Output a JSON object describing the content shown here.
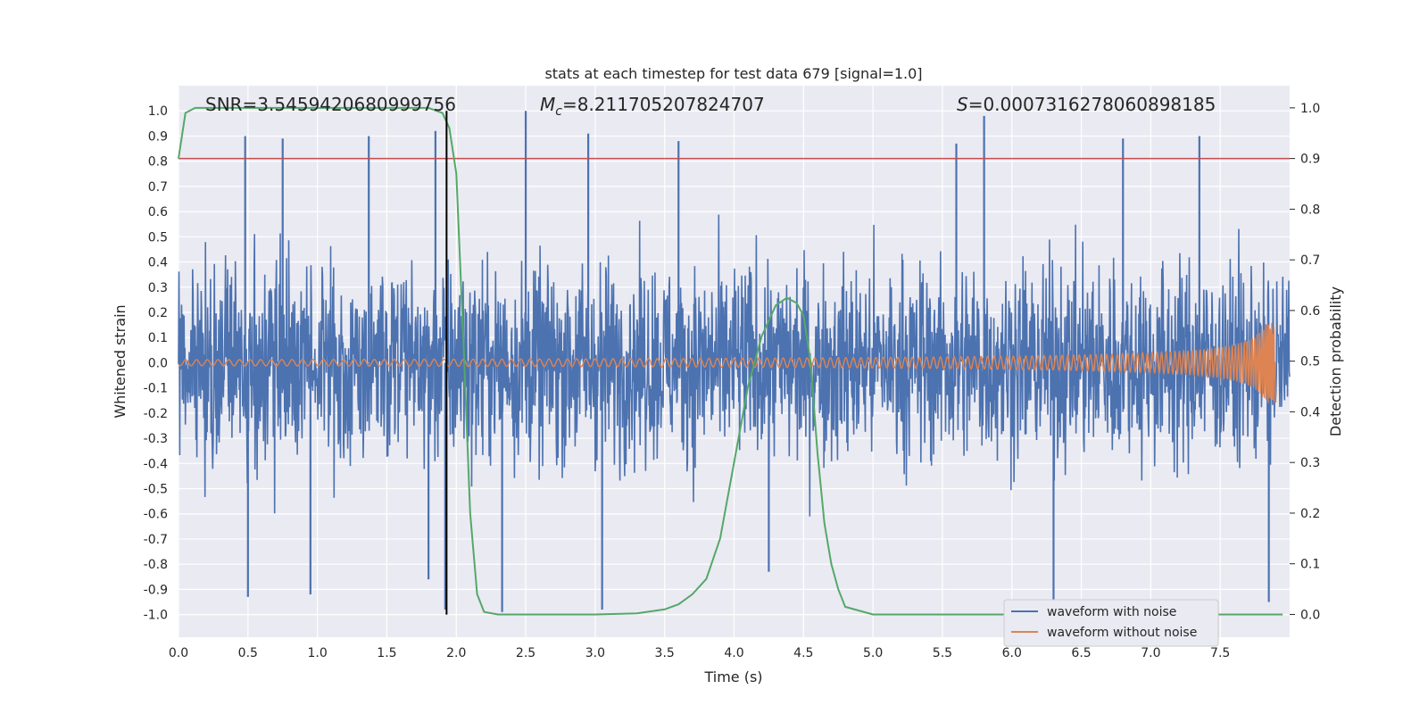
{
  "chart_data": {
    "type": "line",
    "title": "stats at each timestep for test data 679 [signal=1.0]",
    "xlabel": "Time (s)",
    "ylabel": "Whitened strain",
    "ylabel_right": "Detection probability",
    "xlim": [
      0.0,
      8.0
    ],
    "ylim": [
      -1.09,
      1.1
    ],
    "ylim_right": [
      -0.045,
      1.0438
    ],
    "x_ticks": [
      "0.0",
      "0.5",
      "1.0",
      "1.5",
      "2.0",
      "2.5",
      "3.0",
      "3.5",
      "4.0",
      "4.5",
      "5.0",
      "5.5",
      "6.0",
      "6.5",
      "7.0",
      "7.5"
    ],
    "y_ticks": [
      "1.0",
      "0.9",
      "0.8",
      "0.7",
      "0.6",
      "0.5",
      "0.4",
      "0.3",
      "0.2",
      "0.1",
      "0.0",
      "-0.1",
      "-0.2",
      "-0.3",
      "-0.4",
      "-0.5",
      "-0.6",
      "-0.7",
      "-0.8",
      "-0.9",
      "-1.0"
    ],
    "y_ticks_right": [
      "1.0",
      "0.9",
      "0.8",
      "0.7",
      "0.6",
      "0.5",
      "0.4",
      "0.3",
      "0.2",
      "0.1",
      "0.0"
    ],
    "annotations": {
      "snr": "SNR=3.5459420680999756",
      "mc": "=8.211705207824707",
      "s": "=0.0007316278060898185"
    },
    "threshold": {
      "y_right": 0.9,
      "color": "#c44e52"
    },
    "marker_time": 1.93,
    "series": [
      {
        "name": "waveform with noise",
        "color": "#4c72b0",
        "axis": "left",
        "description": "dense noisy whitened strain samples, 0 to 8 s",
        "typical_amplitude": 0.55,
        "spikes": [
          {
            "x": 0.48,
            "y": 0.9
          },
          {
            "x": 0.75,
            "y": 0.89
          },
          {
            "x": 1.37,
            "y": 0.9
          },
          {
            "x": 1.85,
            "y": 0.92
          },
          {
            "x": 2.5,
            "y": 1.0
          },
          {
            "x": 2.95,
            "y": 0.91
          },
          {
            "x": 3.6,
            "y": 0.88
          },
          {
            "x": 5.8,
            "y": 0.98
          },
          {
            "x": 5.6,
            "y": 0.87
          },
          {
            "x": 6.8,
            "y": 0.89
          },
          {
            "x": 7.35,
            "y": 0.9
          },
          {
            "x": 0.5,
            "y": -0.93
          },
          {
            "x": 0.95,
            "y": -0.92
          },
          {
            "x": 1.8,
            "y": -0.86
          },
          {
            "x": 1.92,
            "y": -0.98
          },
          {
            "x": 2.33,
            "y": -0.99
          },
          {
            "x": 3.05,
            "y": -0.98
          },
          {
            "x": 4.25,
            "y": -0.83
          },
          {
            "x": 6.3,
            "y": -0.99
          },
          {
            "x": 7.85,
            "y": -0.95
          }
        ]
      },
      {
        "name": "waveform without noise",
        "color": "#dd8452",
        "axis": "left",
        "description": "chirp waveform, amplitude growing toward merger near 7.9 s",
        "peak_time": 7.9,
        "peak_amplitude": 0.16
      },
      {
        "name": "detection probability",
        "color": "#55a868",
        "axis": "right",
        "x": [
          0.0,
          0.05,
          0.12,
          0.3,
          0.5,
          1.0,
          1.5,
          1.8,
          1.9,
          1.95,
          2.0,
          2.05,
          2.1,
          2.15,
          2.2,
          2.3,
          2.5,
          3.0,
          3.3,
          3.5,
          3.6,
          3.7,
          3.8,
          3.9,
          4.0,
          4.1,
          4.2,
          4.3,
          4.38,
          4.45,
          4.5,
          4.55,
          4.6,
          4.65,
          4.7,
          4.75,
          4.8,
          5.0,
          6.0,
          7.0,
          7.95
        ],
        "y": [
          0.9,
          0.99,
          1.0,
          1.0,
          1.0,
          1.0,
          1.0,
          1.0,
          0.99,
          0.96,
          0.87,
          0.55,
          0.2,
          0.04,
          0.005,
          0.0,
          0.0,
          0.0,
          0.002,
          0.01,
          0.02,
          0.04,
          0.07,
          0.15,
          0.3,
          0.45,
          0.55,
          0.61,
          0.625,
          0.615,
          0.59,
          0.5,
          0.32,
          0.18,
          0.1,
          0.05,
          0.015,
          0.0,
          0.0,
          0.0,
          0.0
        ]
      }
    ],
    "legend": {
      "placement": "lower-right",
      "entries": [
        {
          "label": "waveform with noise",
          "color": "#4c72b0"
        },
        {
          "label": "waveform without noise",
          "color": "#dd8452"
        }
      ]
    },
    "grid": true,
    "background": "#eaeaf2"
  }
}
